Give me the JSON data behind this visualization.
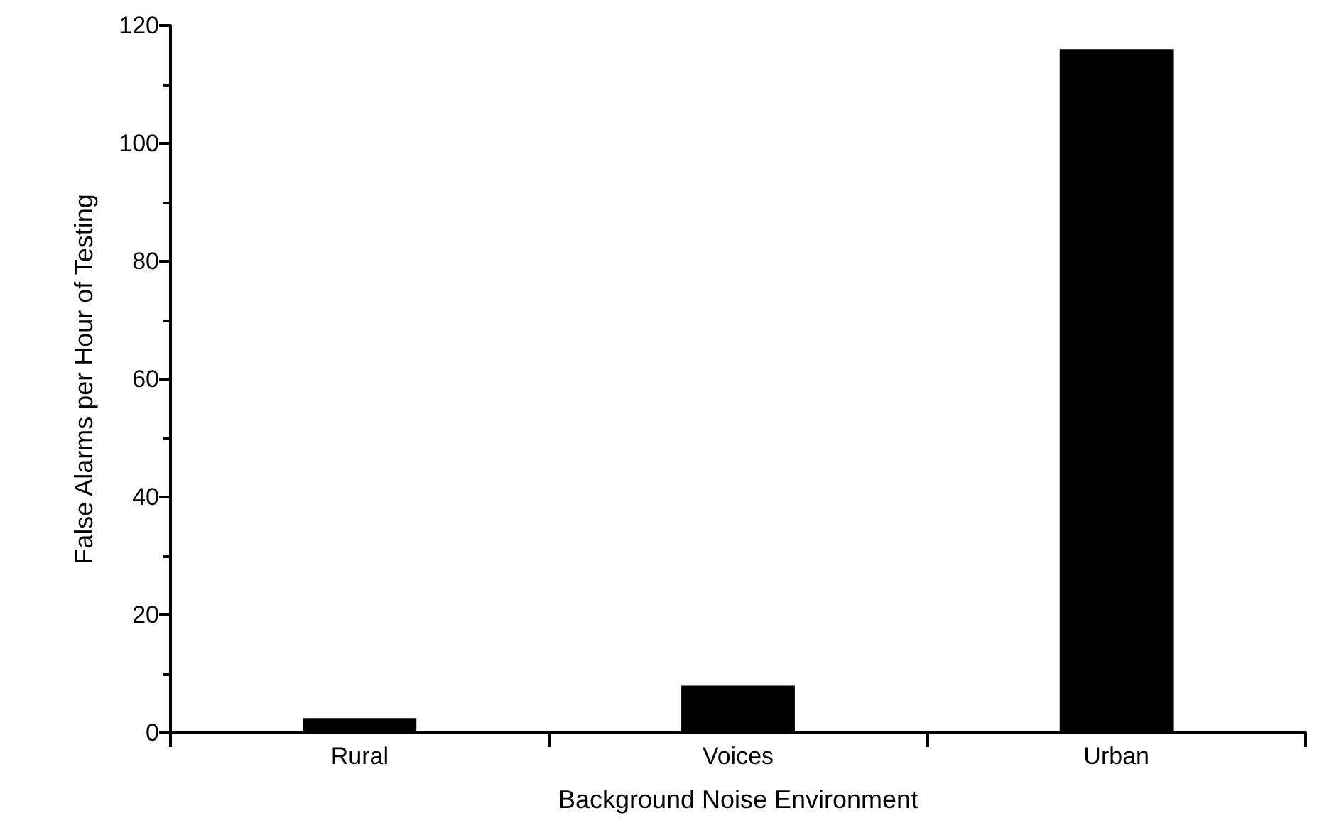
{
  "chart_data": {
    "type": "bar",
    "xlabel": "Background Noise Environment",
    "ylabel": "False Alarms per Hour of Testing",
    "categories": [
      "Rural",
      "Voices",
      "Urban"
    ],
    "values": [
      2.5,
      8,
      116
    ],
    "color": "#000000",
    "ylim": [
      0,
      120
    ],
    "yticks": [
      0,
      20,
      40,
      60,
      80,
      100,
      120
    ],
    "grid": false
  }
}
